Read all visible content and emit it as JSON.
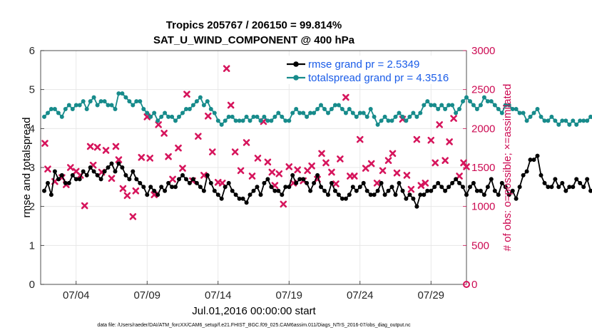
{
  "chart_data": {
    "type": "line",
    "title": "Tropics 205767 / 206150 = 99.814%",
    "subtitle": "SAT_U_WIND_COMPONENT @ 400 hPa",
    "xlabel": "Jul.01,2016 00:00:00 start",
    "ylabel": "rmse and totalspread",
    "ylabel_right": "# of obs: o=possible; ×=assimilated",
    "footnote": "data file: /Users/raeder/DAI/ATM_forcXX/CAM6_setup/f.e21.FHIST_BGC.f09_025.CAM6assim.011/Diags_NTrS_2016-07/obs_diag_output.nc",
    "xlim": [
      1.5,
      31.5
    ],
    "ylim": [
      0,
      6
    ],
    "ylim_right": [
      0,
      3000
    ],
    "xticks": [
      4,
      9,
      14,
      19,
      24,
      29
    ],
    "xtick_labels": [
      "07/04",
      "07/09",
      "07/14",
      "07/19",
      "07/24",
      "07/29"
    ],
    "yticks": [
      0,
      1,
      2,
      3,
      4,
      5,
      6
    ],
    "yticks_right": [
      0,
      500,
      1000,
      1500,
      2000,
      2500,
      3000
    ],
    "grid": true,
    "legend_position": "top-right",
    "legend": [
      "rmse grand pr = 2.5349",
      "totalspread grand pr = 4.3516"
    ],
    "colors": {
      "rmse": "#000000",
      "spread": "#178b8b",
      "obs": "#d6155c",
      "legend_text": "#1a5ce8",
      "right_axis": "#cc0a52"
    },
    "series": [
      {
        "name": "rmse",
        "x_start": 1.75,
        "x_step": 0.25,
        "values": [
          2.4,
          2.6,
          2.3,
          2.9,
          2.7,
          2.8,
          2.6,
          2.6,
          2.8,
          2.7,
          2.7,
          2.9,
          2.8,
          3.0,
          2.9,
          2.8,
          2.7,
          2.9,
          3.0,
          3.1,
          2.9,
          3.1,
          3.0,
          2.8,
          2.7,
          2.9,
          2.7,
          2.6,
          2.5,
          2.3,
          2.5,
          2.4,
          2.3,
          2.5,
          2.4,
          2.6,
          2.5,
          2.5,
          2.7,
          2.8,
          2.7,
          2.6,
          2.7,
          2.6,
          2.5,
          2.4,
          2.8,
          2.6,
          2.4,
          2.3,
          2.2,
          2.5,
          2.6,
          2.4,
          2.3,
          2.2,
          2.2,
          2.1,
          2.3,
          2.4,
          2.5,
          2.3,
          2.6,
          2.7,
          2.5,
          2.4,
          2.4,
          2.3,
          2.5,
          2.5,
          2.8,
          2.6,
          2.7,
          2.7,
          2.6,
          2.4,
          2.6,
          2.8,
          2.5,
          2.4,
          2.3,
          2.6,
          2.4,
          2.3,
          2.2,
          2.2,
          2.3,
          2.5,
          2.4,
          2.5,
          2.6,
          2.4,
          2.3,
          2.3,
          2.4,
          2.6,
          2.3,
          2.4,
          2.5,
          2.3,
          2.6,
          2.4,
          2.2,
          2.3,
          2.2,
          2.0,
          2.3,
          2.3,
          2.4,
          2.4,
          2.5,
          2.6,
          2.5,
          2.4,
          2.5,
          2.6,
          2.7,
          2.6,
          2.5,
          2.3,
          2.5,
          2.6,
          2.4,
          2.4,
          2.3,
          2.5,
          2.7,
          2.4,
          2.3,
          2.6,
          2.5,
          2.3,
          2.4,
          2.2,
          2.5,
          2.8,
          2.9,
          3.2,
          3.2,
          3.3,
          2.8,
          2.6,
          2.5,
          2.5,
          2.7,
          2.5,
          2.6,
          2.4,
          2.5,
          2.5,
          2.7,
          2.6,
          2.5,
          2.7,
          2.4,
          2.4,
          2.6,
          2.5,
          2.3,
          2.4,
          2.4,
          2.5,
          2.3,
          2.4,
          2.6,
          2.5,
          2.4,
          2.3,
          2.4,
          2.5,
          2.6,
          2.4,
          2.3,
          2.5,
          2.5,
          2.4,
          2.6,
          2.5,
          2.3,
          2.3,
          2.7,
          2.6,
          2.5,
          2.3,
          2.2,
          2.4,
          2.5,
          2.5,
          2.8,
          2.7,
          2.5,
          2.3,
          2.2,
          2.2,
          2.4,
          2.4,
          2.5,
          2.4,
          2.3,
          2.2,
          2.5,
          2.4,
          2.3,
          2.2,
          2.5,
          2.6,
          2.5,
          2.5,
          2.3,
          2.6
        ]
      },
      {
        "name": "totalspread",
        "x_start": 1.75,
        "x_step": 0.25,
        "values": [
          4.3,
          4.4,
          4.5,
          4.5,
          4.4,
          4.3,
          4.5,
          4.6,
          4.5,
          4.6,
          4.6,
          4.7,
          4.5,
          4.7,
          4.8,
          4.6,
          4.7,
          4.7,
          4.6,
          4.6,
          4.5,
          4.9,
          4.9,
          4.8,
          4.7,
          4.6,
          4.7,
          4.7,
          4.5,
          4.4,
          4.3,
          4.4,
          4.2,
          4.3,
          4.4,
          4.3,
          4.3,
          4.2,
          4.3,
          4.4,
          4.5,
          4.5,
          4.6,
          4.7,
          4.8,
          4.6,
          4.7,
          4.5,
          4.4,
          4.2,
          4.1,
          4.2,
          4.3,
          4.3,
          4.2,
          4.2,
          4.2,
          4.3,
          4.2,
          4.3,
          4.3,
          4.2,
          4.3,
          4.2,
          4.2,
          4.3,
          4.4,
          4.3,
          4.2,
          4.2,
          4.4,
          4.5,
          4.4,
          4.4,
          4.3,
          4.4,
          4.4,
          4.5,
          4.6,
          4.5,
          4.4,
          4.5,
          4.6,
          4.6,
          4.5,
          4.4,
          4.5,
          4.4,
          4.3,
          4.4,
          4.4,
          4.3,
          4.5,
          4.3,
          4.1,
          4.2,
          4.3,
          4.2,
          4.2,
          4.3,
          4.4,
          4.3,
          4.2,
          4.3,
          4.4,
          4.3,
          4.4,
          4.6,
          4.7,
          4.6,
          4.6,
          4.5,
          4.6,
          4.5,
          4.6,
          4.6,
          4.4,
          4.5,
          4.7,
          4.8,
          4.7,
          4.6,
          4.5,
          4.6,
          4.8,
          4.7,
          4.7,
          4.6,
          4.5,
          4.4,
          4.6,
          4.6,
          4.5,
          4.5,
          4.4,
          4.4,
          4.2,
          4.3,
          4.4,
          4.5,
          4.3,
          4.2,
          4.2,
          4.3,
          4.2,
          4.1,
          4.2,
          4.2,
          4.1,
          4.2,
          4.1,
          4.2,
          4.2,
          4.2,
          4.3,
          4.2,
          4.2,
          4.2,
          4.3,
          4.2,
          4.1,
          4.2,
          4.3,
          4.2,
          4.3,
          4.3,
          4.2,
          4.3,
          4.2,
          4.2,
          4.3,
          4.2,
          4.3,
          4.2,
          4.3,
          4.3,
          4.4,
          4.3,
          4.4,
          4.5,
          4.3,
          4.2,
          4.1,
          4.2,
          4.1,
          4.0,
          4.1,
          4.2,
          4.2,
          4.3,
          4.2,
          4.3,
          4.2,
          4.3,
          4.2,
          4.2,
          4.3,
          4.3,
          4.4,
          4.4,
          4.4,
          4.4
        ]
      },
      {
        "name": "obs_assimilated",
        "axis": "right",
        "x": [
          1.8,
          2.0,
          2.5,
          3.0,
          3.3,
          3.6,
          4.0,
          4.3,
          4.6,
          5.0,
          5.2,
          5.5,
          5.8,
          6.1,
          6.5,
          6.8,
          7.0,
          7.3,
          7.6,
          8.0,
          8.2,
          8.6,
          9.0,
          9.2,
          9.5,
          9.8,
          10.2,
          10.5,
          10.8,
          11.2,
          11.5,
          11.8,
          12.2,
          12.6,
          13.0,
          13.3,
          13.6,
          14.0,
          14.3,
          14.6,
          14.9,
          15.2,
          15.6,
          16.0,
          16.4,
          16.8,
          17.2,
          17.5,
          17.8,
          18.0,
          18.3,
          18.6,
          19.0,
          19.3,
          19.6,
          20.0,
          20.3,
          20.6,
          21.0,
          21.3,
          21.6,
          22.0,
          22.3,
          22.6,
          23.0,
          23.3,
          23.6,
          24.0,
          24.4,
          24.8,
          25.2,
          25.6,
          26.0,
          26.3,
          26.6,
          27.0,
          27.3,
          27.6,
          28.0,
          28.3,
          28.6,
          29.0,
          29.3,
          29.6,
          30.0,
          30.3,
          30.6,
          31.0,
          31.3,
          31.5
        ],
        "values": [
          1810,
          1480,
          1320,
          1370,
          1280,
          1500,
          1450,
          1400,
          1010,
          1770,
          1530,
          1760,
          1440,
          1720,
          1360,
          1770,
          1600,
          1230,
          1140,
          870,
          1200,
          1630,
          2150,
          1620,
          1150,
          2050,
          1940,
          1640,
          1350,
          1750,
          1490,
          2440,
          1330,
          1900,
          1400,
          2160,
          1700,
          1310,
          1300,
          2770,
          2300,
          1700,
          1460,
          1820,
          1390,
          1620,
          2090,
          1570,
          1440,
          1270,
          1420,
          1030,
          1510,
          1300,
          1470,
          1330,
          1460,
          1520,
          1350,
          1680,
          1560,
          1440,
          1290,
          1610,
          2400,
          1390,
          1390,
          1860,
          1490,
          1550,
          1300,
          1460,
          1590,
          1680,
          1430,
          2120,
          1400,
          1220,
          1860,
          1270,
          1300,
          1850,
          1560,
          2050,
          1590,
          1830,
          2130,
          1390,
          1560,
          1510
        ]
      }
    ],
    "last_marker": {
      "x": 31.5,
      "y_right": 0
    }
  }
}
